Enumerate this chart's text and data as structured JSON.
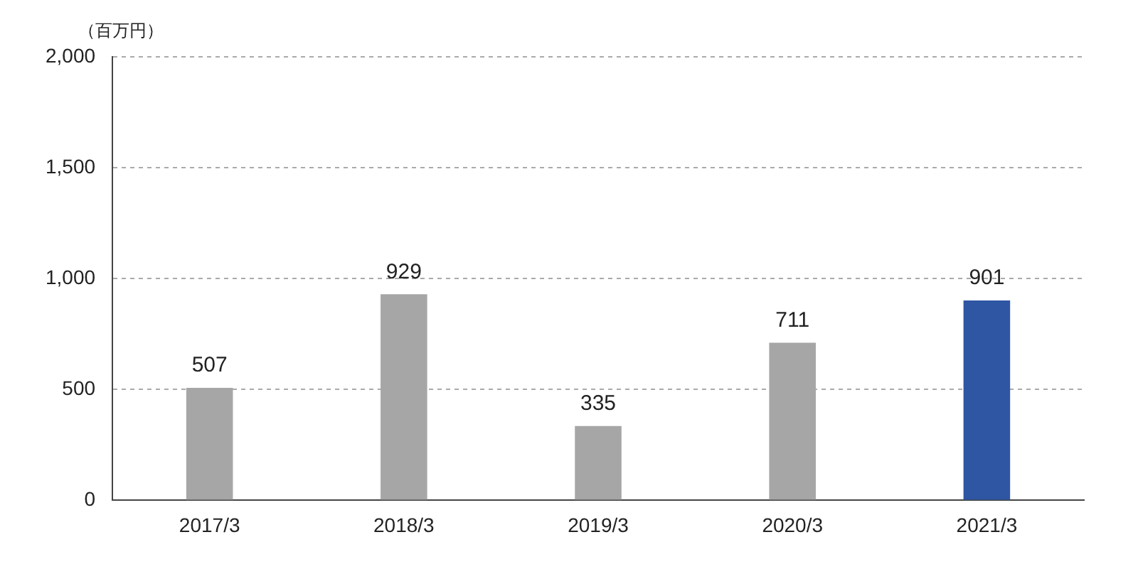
{
  "chart_data": {
    "type": "bar",
    "ylabel": "（百万円）",
    "categories": [
      "2017/3",
      "2018/3",
      "2019/3",
      "2020/3",
      "2021/3"
    ],
    "values": [
      507,
      929,
      335,
      711,
      901
    ],
    "colors": [
      "#a6a6a6",
      "#a6a6a6",
      "#a6a6a6",
      "#a6a6a6",
      "#2f56a3"
    ],
    "ylim": [
      0,
      2000
    ],
    "yticks": [
      {
        "value": 0,
        "label": "0"
      },
      {
        "value": 500,
        "label": "500"
      },
      {
        "value": 1000,
        "label": "1,000"
      },
      {
        "value": 1500,
        "label": "1,500"
      },
      {
        "value": 2000,
        "label": "2,000"
      }
    ],
    "grid": "y",
    "data_labels": true
  }
}
